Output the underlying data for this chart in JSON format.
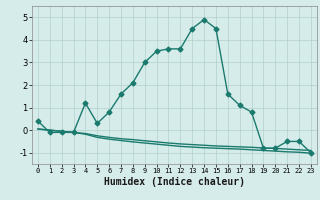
{
  "x": [
    0,
    1,
    2,
    3,
    4,
    5,
    6,
    7,
    8,
    9,
    10,
    11,
    12,
    13,
    14,
    15,
    16,
    17,
    18,
    19,
    20,
    21,
    22,
    23
  ],
  "line1": [
    0.4,
    -0.1,
    -0.1,
    -0.1,
    1.2,
    0.3,
    0.8,
    1.6,
    2.1,
    3.0,
    3.5,
    3.6,
    3.6,
    4.5,
    4.9,
    4.5,
    1.6,
    1.1,
    0.8,
    -0.8,
    -0.8,
    -0.5,
    -0.5,
    -1.0
  ],
  "line2": [
    0.05,
    0.0,
    -0.05,
    -0.1,
    -0.15,
    -0.25,
    -0.32,
    -0.38,
    -0.42,
    -0.47,
    -0.52,
    -0.57,
    -0.61,
    -0.64,
    -0.67,
    -0.7,
    -0.72,
    -0.74,
    -0.76,
    -0.79,
    -0.81,
    -0.84,
    -0.87,
    -0.9
  ],
  "line3": [
    0.05,
    0.0,
    -0.05,
    -0.1,
    -0.18,
    -0.32,
    -0.4,
    -0.46,
    -0.52,
    -0.57,
    -0.62,
    -0.67,
    -0.72,
    -0.75,
    -0.78,
    -0.8,
    -0.82,
    -0.84,
    -0.87,
    -0.9,
    -0.93,
    -0.96,
    -0.98,
    -1.02
  ],
  "color": "#1a7a6e",
  "bg_color": "#d6ecea",
  "grid_color": "#b0d0cc",
  "xlabel": "Humidex (Indice chaleur)",
  "ylim": [
    -1.5,
    5.5
  ],
  "xlim": [
    -0.5,
    23.5
  ],
  "yticks": [
    -1,
    0,
    1,
    2,
    3,
    4,
    5
  ],
  "xticks": [
    0,
    1,
    2,
    3,
    4,
    5,
    6,
    7,
    8,
    9,
    10,
    11,
    12,
    13,
    14,
    15,
    16,
    17,
    18,
    19,
    20,
    21,
    22,
    23
  ],
  "marker": "D",
  "markersize": 2.5,
  "linewidth": 1.0
}
